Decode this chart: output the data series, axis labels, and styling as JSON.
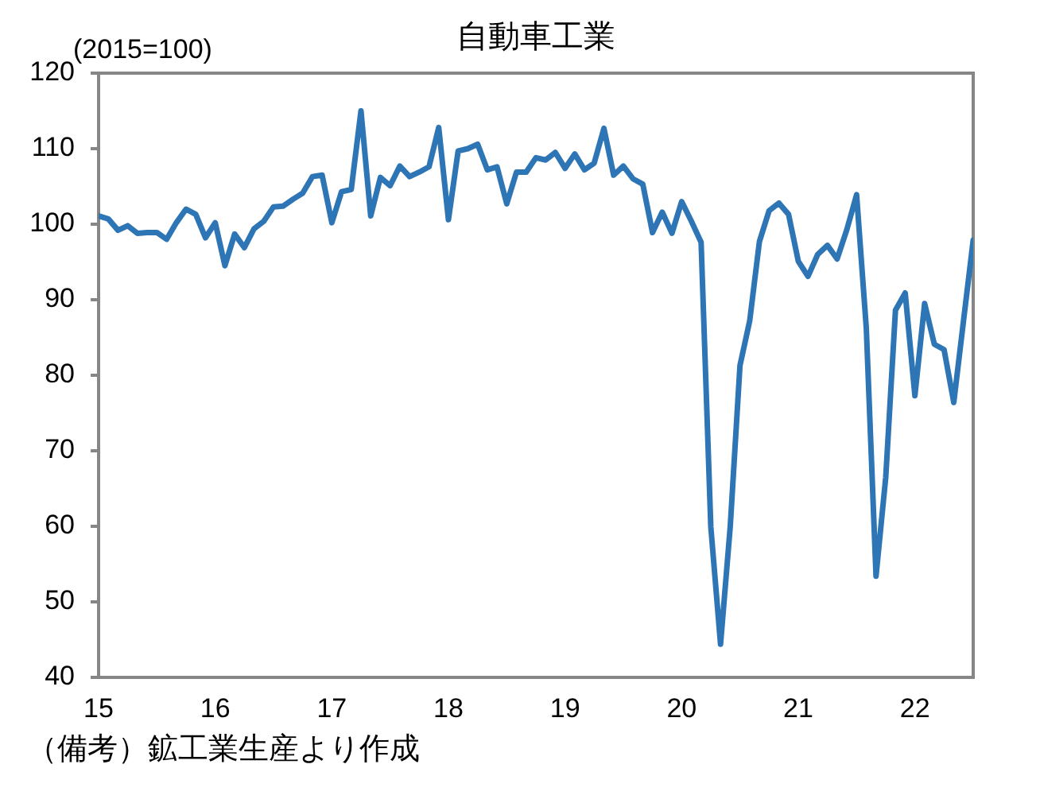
{
  "chart_data": {
    "type": "line",
    "title": "自動車工業",
    "ylabel": "(2015=100)",
    "annotations": [
      "（備考）鉱工業生産より作成"
    ],
    "x": [
      "2015-01",
      "2015-02",
      "2015-03",
      "2015-04",
      "2015-05",
      "2015-06",
      "2015-07",
      "2015-08",
      "2015-09",
      "2015-10",
      "2015-11",
      "2015-12",
      "2016-01",
      "2016-02",
      "2016-03",
      "2016-04",
      "2016-05",
      "2016-06",
      "2016-07",
      "2016-08",
      "2016-09",
      "2016-10",
      "2016-11",
      "2016-12",
      "2017-01",
      "2017-02",
      "2017-03",
      "2017-04",
      "2017-05",
      "2017-06",
      "2017-07",
      "2017-08",
      "2017-09",
      "2017-10",
      "2017-11",
      "2017-12",
      "2018-01",
      "2018-02",
      "2018-03",
      "2018-04",
      "2018-05",
      "2018-06",
      "2018-07",
      "2018-08",
      "2018-09",
      "2018-10",
      "2018-11",
      "2018-12",
      "2019-01",
      "2019-02",
      "2019-03",
      "2019-04",
      "2019-05",
      "2019-06",
      "2019-07",
      "2019-08",
      "2019-09",
      "2019-10",
      "2019-11",
      "2019-12",
      "2020-01",
      "2020-02",
      "2020-03",
      "2020-04",
      "2020-05",
      "2020-06",
      "2020-07",
      "2020-08",
      "2020-09",
      "2020-10",
      "2020-11",
      "2020-12",
      "2021-01",
      "2021-02",
      "2021-03",
      "2021-04",
      "2021-05",
      "2021-06",
      "2021-07",
      "2021-08",
      "2021-09",
      "2021-10",
      "2021-11",
      "2021-12",
      "2022-01",
      "2022-02",
      "2022-03",
      "2022-04",
      "2022-05",
      "2022-06",
      "2022-07"
    ],
    "values": [
      101.1,
      100.7,
      99.2,
      99.8,
      98.8,
      98.9,
      98.9,
      98.0,
      100.2,
      102.0,
      101.3,
      98.2,
      100.2,
      94.5,
      98.7,
      96.9,
      99.4,
      100.4,
      102.3,
      102.4,
      103.3,
      104.1,
      106.3,
      106.5,
      100.2,
      104.3,
      104.6,
      115.0,
      101.1,
      106.2,
      105.1,
      107.7,
      106.3,
      106.9,
      107.6,
      112.8,
      100.6,
      109.7,
      110.0,
      110.6,
      107.2,
      107.6,
      102.7,
      106.9,
      106.9,
      108.8,
      108.5,
      109.5,
      107.4,
      109.3,
      107.2,
      108.1,
      112.7,
      106.5,
      107.7,
      106.0,
      105.3,
      98.9,
      101.6,
      98.8,
      103.0,
      100.4,
      97.6,
      59.9,
      44.4,
      60.0,
      81.3,
      87.2,
      97.7,
      101.8,
      102.8,
      101.3,
      95.1,
      93.1,
      96.0,
      97.2,
      95.4,
      99.3,
      103.9,
      86.2,
      53.4,
      66.5,
      88.6,
      90.9,
      77.3,
      89.5,
      84.1,
      83.4,
      76.4,
      87.2,
      97.9
    ],
    "color": "#2e75b6",
    "marker": "none",
    "line_style": "solid",
    "xlim": [
      "2015-01",
      "2022-07"
    ],
    "xticks": [
      {
        "value": "2015-01",
        "label": "15"
      },
      {
        "value": "2016-01",
        "label": "16"
      },
      {
        "value": "2017-01",
        "label": "17"
      },
      {
        "value": "2018-01",
        "label": "18"
      },
      {
        "value": "2019-01",
        "label": "19"
      },
      {
        "value": "2020-01",
        "label": "20"
      },
      {
        "value": "2021-01",
        "label": "21"
      },
      {
        "value": "2022-01",
        "label": "22"
      }
    ],
    "ylim": [
      40,
      120
    ],
    "yticks": [
      40,
      50,
      60,
      70,
      80,
      90,
      100,
      110,
      120
    ]
  }
}
